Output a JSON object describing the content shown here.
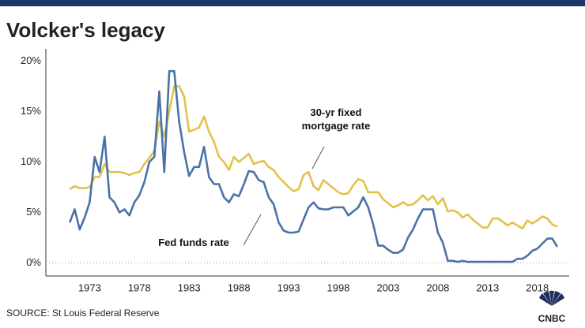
{
  "chart_data": {
    "type": "line",
    "title": "Volcker's legacy",
    "source": "SOURCE: St Louis Federal Reserve",
    "logo": "CNBC",
    "x": [
      1971.0,
      1971.5,
      1972.0,
      1972.5,
      1973.0,
      1973.5,
      1974.0,
      1974.5,
      1975.0,
      1975.5,
      1976.0,
      1976.5,
      1977.0,
      1977.5,
      1978.0,
      1978.5,
      1979.0,
      1979.5,
      1980.0,
      1980.5,
      1981.0,
      1981.5,
      1982.0,
      1982.5,
      1983.0,
      1983.5,
      1984.0,
      1984.5,
      1985.0,
      1985.5,
      1986.0,
      1986.5,
      1987.0,
      1987.5,
      1988.0,
      1988.5,
      1989.0,
      1989.5,
      1990.0,
      1990.5,
      1991.0,
      1991.5,
      1992.0,
      1992.5,
      1993.0,
      1993.5,
      1994.0,
      1994.5,
      1995.0,
      1995.5,
      1996.0,
      1996.5,
      1997.0,
      1997.5,
      1998.0,
      1998.5,
      1999.0,
      1999.5,
      2000.0,
      2000.5,
      2001.0,
      2001.5,
      2002.0,
      2002.5,
      2003.0,
      2003.5,
      2004.0,
      2004.5,
      2005.0,
      2005.5,
      2006.0,
      2006.5,
      2007.0,
      2007.5,
      2008.0,
      2008.5,
      2009.0,
      2009.5,
      2010.0,
      2010.5,
      2011.0,
      2011.5,
      2012.0,
      2012.5,
      2013.0,
      2013.5,
      2014.0,
      2014.5,
      2015.0,
      2015.5,
      2016.0,
      2016.5,
      2017.0,
      2017.5,
      2018.0,
      2018.5,
      2019.0,
      2019.5,
      2020.0
    ],
    "series": [
      {
        "name": "30-yr fixed mortgage rate",
        "color": "#e2c24a",
        "values": [
          7.3,
          7.6,
          7.4,
          7.4,
          7.5,
          8.5,
          8.5,
          9.8,
          9.0,
          9.0,
          9.0,
          8.9,
          8.7,
          8.9,
          9.0,
          9.8,
          10.4,
          11.1,
          14.0,
          12.5,
          15.0,
          17.5,
          17.5,
          16.5,
          13.0,
          13.2,
          13.4,
          14.5,
          13.0,
          12.0,
          10.5,
          10.0,
          9.2,
          10.5,
          10.0,
          10.4,
          10.8,
          9.8,
          10.0,
          10.1,
          9.5,
          9.2,
          8.5,
          8.0,
          7.5,
          7.1,
          7.3,
          8.7,
          9.0,
          7.6,
          7.2,
          8.2,
          7.8,
          7.4,
          7.0,
          6.8,
          6.9,
          7.7,
          8.3,
          8.1,
          7.0,
          7.0,
          7.0,
          6.3,
          5.9,
          5.5,
          5.7,
          6.0,
          5.7,
          5.8,
          6.2,
          6.7,
          6.2,
          6.6,
          5.8,
          6.4,
          5.1,
          5.2,
          5.0,
          4.5,
          4.8,
          4.3,
          3.9,
          3.5,
          3.5,
          4.4,
          4.4,
          4.1,
          3.7,
          4.0,
          3.7,
          3.4,
          4.2,
          3.9,
          4.2,
          4.6,
          4.4,
          3.8,
          3.6
        ]
      },
      {
        "name": "Fed funds rate",
        "color": "#4a72a6",
        "values": [
          4.0,
          5.3,
          3.3,
          4.5,
          6.0,
          10.5,
          9.0,
          12.5,
          6.5,
          6.0,
          5.0,
          5.3,
          4.7,
          6.0,
          6.7,
          8.0,
          10.0,
          10.5,
          17.0,
          9.0,
          19.0,
          19.0,
          14.0,
          11.0,
          8.6,
          9.5,
          9.5,
          11.5,
          8.5,
          7.8,
          7.8,
          6.5,
          6.0,
          6.8,
          6.6,
          7.8,
          9.1,
          9.0,
          8.2,
          8.0,
          6.5,
          5.8,
          4.0,
          3.2,
          3.0,
          3.0,
          3.1,
          4.3,
          5.5,
          6.0,
          5.4,
          5.3,
          5.3,
          5.5,
          5.5,
          5.5,
          4.7,
          5.1,
          5.5,
          6.5,
          5.5,
          3.8,
          1.7,
          1.7,
          1.3,
          1.0,
          1.0,
          1.3,
          2.5,
          3.3,
          4.4,
          5.3,
          5.3,
          5.3,
          3.0,
          2.0,
          0.2,
          0.2,
          0.1,
          0.2,
          0.1,
          0.1,
          0.1,
          0.1,
          0.1,
          0.1,
          0.1,
          0.1,
          0.1,
          0.1,
          0.4,
          0.4,
          0.7,
          1.2,
          1.4,
          1.9,
          2.4,
          2.4,
          1.6
        ]
      }
    ],
    "xlim": [
      1968.6,
      2021.2
    ],
    "xticks": [
      1973,
      1978,
      1983,
      1988,
      1993,
      1998,
      2003,
      2008,
      2013,
      2018
    ],
    "ylim": [
      -1.3,
      21.2
    ],
    "yticks": [
      {
        "value": 0,
        "label": "0%"
      },
      {
        "value": 5,
        "label": "5%"
      },
      {
        "value": 10,
        "label": "10%"
      },
      {
        "value": 15,
        "label": "15%"
      },
      {
        "value": 20,
        "label": "20%"
      }
    ]
  }
}
